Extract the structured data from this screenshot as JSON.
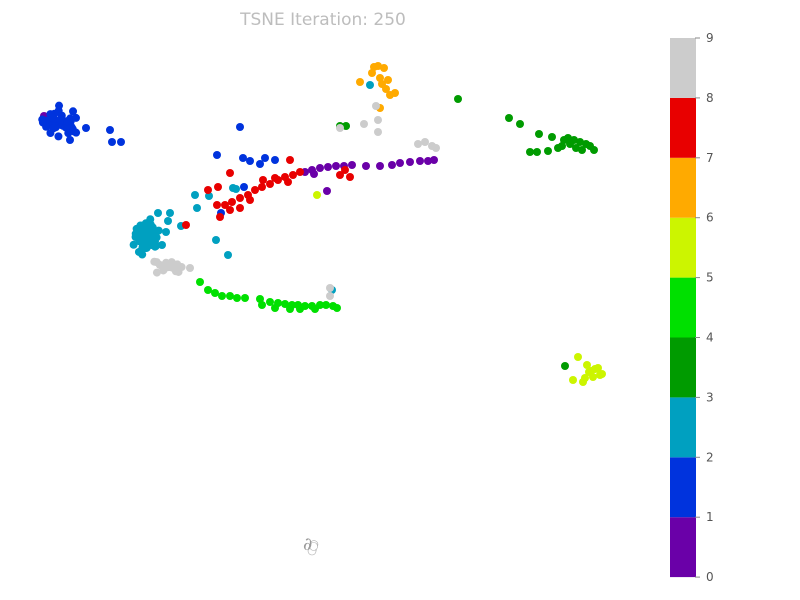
{
  "chart_data": {
    "type": "scatter",
    "title": "TSNE Iteration: 250",
    "xlabel": "",
    "ylabel": "",
    "grid": false,
    "legend": "colorbar-right",
    "colorbar": {
      "ticks": [
        "0",
        "1",
        "2",
        "3",
        "4",
        "5",
        "6",
        "7",
        "8",
        "9"
      ],
      "colors": [
        "#ffffff",
        "#6a00a8",
        "#0033dd",
        "#00a0c0",
        "#009b00",
        "#00e000",
        "#ccf500",
        "#ffaa00",
        "#e80000",
        "#cccccc"
      ]
    },
    "clusters": [
      {
        "label": "0",
        "color": "#ffffff",
        "center": [
          313,
          546
        ],
        "spread": [
          4,
          6
        ],
        "count": 4
      },
      {
        "label": "1",
        "color": "#6a00a8",
        "points": [
          [
            44,
            116
          ],
          [
            46,
            121
          ],
          [
            305,
            172
          ],
          [
            312,
            170
          ],
          [
            320,
            168
          ],
          [
            328,
            167
          ],
          [
            336,
            166
          ],
          [
            344,
            166
          ],
          [
            352,
            165
          ],
          [
            366,
            166
          ],
          [
            380,
            166
          ],
          [
            392,
            165
          ],
          [
            400,
            163
          ],
          [
            410,
            162
          ],
          [
            420,
            161
          ],
          [
            428,
            161
          ],
          [
            434,
            160
          ],
          [
            327,
            191
          ],
          [
            314,
            174
          ]
        ]
      },
      {
        "label": "2",
        "color": "#0033dd",
        "center": [
          62,
          123
        ],
        "spread": [
          16,
          11
        ],
        "count": 38,
        "points": [
          [
            86,
            128
          ],
          [
            110,
            130
          ],
          [
            112,
            142
          ],
          [
            121,
            142
          ],
          [
            240,
            127
          ],
          [
            217,
            155
          ],
          [
            243,
            158
          ],
          [
            250,
            161
          ],
          [
            265,
            158
          ],
          [
            275,
            160
          ],
          [
            221,
            213
          ],
          [
            244,
            187
          ],
          [
            70,
            140
          ],
          [
            260,
            164
          ]
        ]
      },
      {
        "label": "3",
        "color": "#00a0c0",
        "center": [
          146,
          235
        ],
        "spread": [
          10,
          13
        ],
        "count": 60,
        "points": [
          [
            158,
            213
          ],
          [
            170,
            213
          ],
          [
            168,
            221
          ],
          [
            181,
            226
          ],
          [
            166,
            232
          ],
          [
            162,
            245
          ],
          [
            228,
            255
          ],
          [
            216,
            240
          ],
          [
            197,
            208
          ],
          [
            209,
            196
          ],
          [
            236,
            189
          ],
          [
            233,
            188
          ],
          [
            370,
            85
          ],
          [
            332,
            290
          ],
          [
            195,
            195
          ]
        ]
      },
      {
        "label": "4",
        "color": "#009b00",
        "points": [
          [
            458,
            99
          ],
          [
            509,
            118
          ],
          [
            520,
            124
          ],
          [
            539,
            134
          ],
          [
            552,
            137
          ],
          [
            530,
            152
          ],
          [
            537,
            152
          ],
          [
            548,
            151
          ],
          [
            558,
            148
          ],
          [
            564,
            140
          ],
          [
            568,
            138
          ],
          [
            574,
            140
          ],
          [
            580,
            142
          ],
          [
            586,
            144
          ],
          [
            590,
            146
          ],
          [
            594,
            150
          ],
          [
            570,
            144
          ],
          [
            576,
            148
          ],
          [
            562,
            146
          ],
          [
            582,
            150
          ],
          [
            340,
            126
          ],
          [
            346,
            126
          ],
          [
            565,
            366
          ]
        ]
      },
      {
        "label": "5",
        "color": "#00e000",
        "points": [
          [
            200,
            282
          ],
          [
            208,
            290
          ],
          [
            215,
            293
          ],
          [
            222,
            296
          ],
          [
            230,
            296
          ],
          [
            237,
            298
          ],
          [
            245,
            298
          ],
          [
            260,
            299
          ],
          [
            270,
            302
          ],
          [
            278,
            303
          ],
          [
            285,
            304
          ],
          [
            292,
            305
          ],
          [
            298,
            305
          ],
          [
            305,
            306
          ],
          [
            312,
            306
          ],
          [
            320,
            305
          ],
          [
            326,
            305
          ],
          [
            333,
            306
          ],
          [
            337,
            308
          ],
          [
            262,
            305
          ],
          [
            275,
            308
          ],
          [
            290,
            309
          ],
          [
            300,
            309
          ],
          [
            315,
            309
          ]
        ]
      },
      {
        "label": "6",
        "color": "#ccf500",
        "points": [
          [
            578,
            357
          ],
          [
            587,
            365
          ],
          [
            591,
            371
          ],
          [
            595,
            369
          ],
          [
            600,
            375
          ],
          [
            593,
            377
          ],
          [
            585,
            378
          ],
          [
            573,
            380
          ],
          [
            583,
            382
          ],
          [
            589,
            372
          ],
          [
            598,
            368
          ],
          [
            602,
            374
          ],
          [
            317,
            195
          ]
        ]
      },
      {
        "label": "7",
        "color": "#ffaa00",
        "points": [
          [
            372,
            73
          ],
          [
            378,
            66
          ],
          [
            384,
            68
          ],
          [
            380,
            78
          ],
          [
            382,
            84
          ],
          [
            386,
            89
          ],
          [
            390,
            95
          ],
          [
            395,
            93
          ],
          [
            360,
            82
          ],
          [
            380,
            108
          ],
          [
            374,
            67
          ],
          [
            388,
            80
          ]
        ]
      },
      {
        "label": "8",
        "color": "#e80000",
        "points": [
          [
            217,
            205
          ],
          [
            225,
            205
          ],
          [
            232,
            202
          ],
          [
            240,
            198
          ],
          [
            248,
            195
          ],
          [
            255,
            190
          ],
          [
            262,
            187
          ],
          [
            270,
            184
          ],
          [
            278,
            180
          ],
          [
            285,
            177
          ],
          [
            293,
            175
          ],
          [
            300,
            172
          ],
          [
            263,
            180
          ],
          [
            275,
            178
          ],
          [
            288,
            182
          ],
          [
            230,
            210
          ],
          [
            240,
            208
          ],
          [
            250,
            200
          ],
          [
            220,
            217
          ],
          [
            186,
            225
          ],
          [
            208,
            190
          ],
          [
            218,
            187
          ],
          [
            230,
            173
          ],
          [
            290,
            160
          ],
          [
            340,
            175
          ],
          [
            350,
            177
          ],
          [
            345,
            170
          ]
        ]
      },
      {
        "label": "9",
        "color": "#cccccc",
        "center": [
          168,
          268
        ],
        "spread": [
          12,
          7
        ],
        "count": 18,
        "points": [
          [
            376,
            106
          ],
          [
            378,
            120
          ],
          [
            378,
            132
          ],
          [
            364,
            124
          ],
          [
            418,
            144
          ],
          [
            425,
            142
          ],
          [
            432,
            146
          ],
          [
            436,
            148
          ],
          [
            340,
            128
          ],
          [
            330,
            288
          ],
          [
            330,
            296
          ],
          [
            190,
            268
          ]
        ]
      }
    ]
  }
}
